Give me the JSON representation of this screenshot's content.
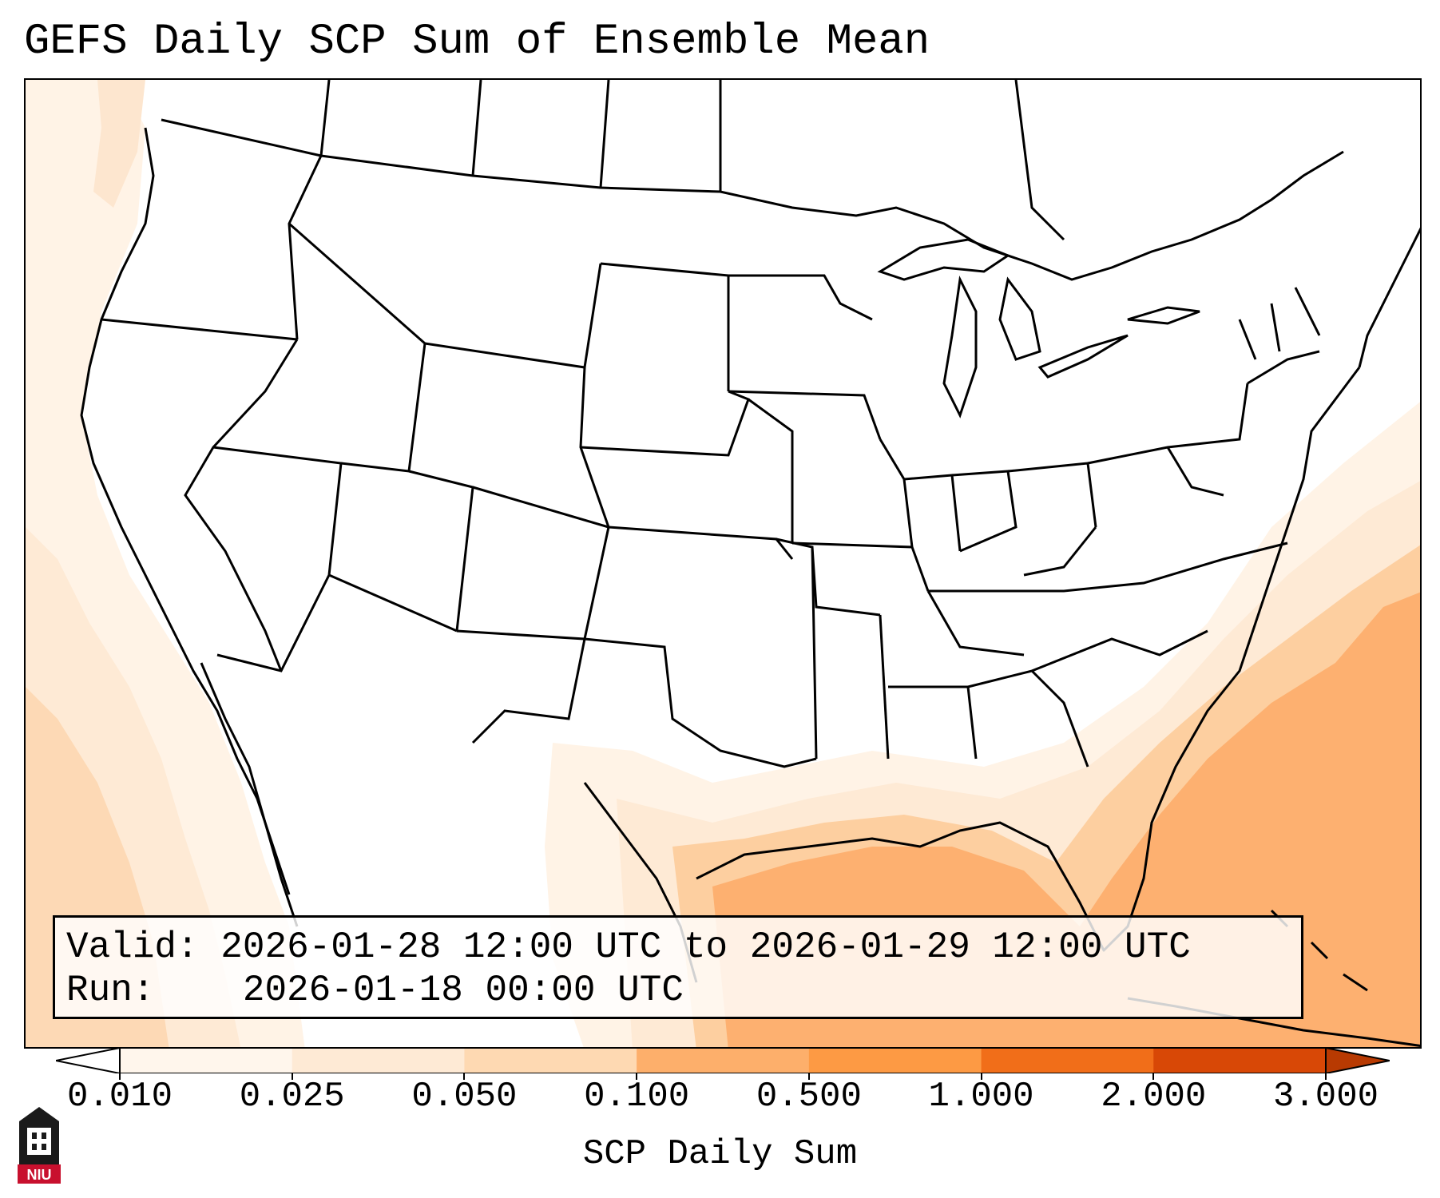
{
  "title": "GEFS Daily SCP Sum of Ensemble Mean",
  "info": {
    "valid_label": "Valid:",
    "valid_value": "2026-01-28 12:00 UTC to 2026-01-29 12:00 UTC",
    "run_label": "Run:",
    "run_value": "2026-01-18 00:00 UTC"
  },
  "colorbar": {
    "label": "SCP Daily Sum",
    "ticks": [
      "0.010",
      "0.025",
      "0.050",
      "0.100",
      "0.500",
      "1.000",
      "2.000",
      "3.000"
    ],
    "colors": [
      "#fff6ec",
      "#feead5",
      "#fed9b2",
      "#fdaf6b",
      "#fd9a44",
      "#f16e19",
      "#d84806"
    ],
    "extend": "both"
  },
  "shading_colors": {
    "lightest": "#fff6ec",
    "light": "#feead5",
    "medium": "#fdd2a6",
    "strong": "#fdae6b"
  },
  "logo": {
    "text": "NIU"
  }
}
